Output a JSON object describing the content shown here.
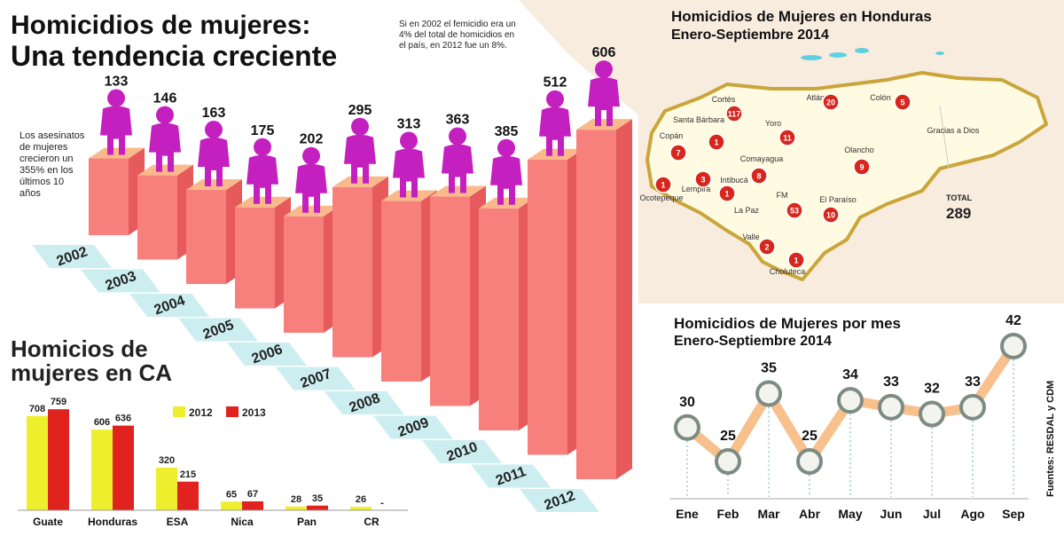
{
  "chart_data": [
    {
      "type": "bar",
      "title": "Homicidios de mujeres:",
      "subtitle": "Una tendencia creciente",
      "note": "Si en 2002 el femicidio era un 4% del total de homicidios en el país, en 2012 fue un 8%.",
      "annotation": "Los asesinatos de mujeres crecieron un 355% en los últimos 10 años",
      "categories": [
        "2002",
        "2003",
        "2004",
        "2005",
        "2006",
        "2007",
        "2008",
        "2009",
        "2010",
        "2011",
        "2012"
      ],
      "values": [
        133,
        146,
        163,
        175,
        202,
        295,
        313,
        363,
        385,
        512,
        606
      ],
      "color": "#f77f7c"
    },
    {
      "type": "bar",
      "title": "Homicios de mujeres en CA",
      "categories": [
        "Guate",
        "Honduras",
        "ESA",
        "Nica",
        "Pan",
        "CR"
      ],
      "series": [
        {
          "name": "2012",
          "color": "#eeee2c",
          "values": [
            708,
            606,
            320,
            65,
            28,
            26
          ]
        },
        {
          "name": "2013",
          "color": "#e0231f",
          "values": [
            759,
            636,
            215,
            67,
            35,
            null
          ],
          "value_labels": [
            "759",
            "636",
            "215",
            "67",
            "35",
            "-"
          ]
        }
      ]
    },
    {
      "type": "line",
      "title": "Homicidios de Mujeres por mes",
      "subtitle": "Enero-Septiembre 2014",
      "categories": [
        "Ene",
        "Feb",
        "Mar",
        "Abr",
        "May",
        "Jun",
        "Jul",
        "Ago",
        "Sep"
      ],
      "values": [
        30,
        25,
        35,
        25,
        34,
        33,
        32,
        33,
        42
      ],
      "color": "#f8c08c"
    }
  ],
  "map": {
    "title": "Homicidios de Mujeres en Honduras",
    "subtitle": "Enero-Septiembre 2014",
    "departments": [
      {
        "name": "Cortés",
        "value": 117
      },
      {
        "name": "Atlántida",
        "value": 20
      },
      {
        "name": "Colón",
        "value": 5
      },
      {
        "name": "Copán",
        "value": 7
      },
      {
        "name": "Santa Bárbara",
        "value": 1
      },
      {
        "name": "Yoro",
        "value": 11
      },
      {
        "name": "Ocotepeque",
        "value": 1
      },
      {
        "name": "Lempira",
        "value": 3
      },
      {
        "name": "Intibucá",
        "value": 1
      },
      {
        "name": "Comayagua",
        "value": 8
      },
      {
        "name": "Olancho",
        "value": 9
      },
      {
        "name": "FM",
        "value": 53
      },
      {
        "name": "El Paraíso",
        "value": 10
      },
      {
        "name": "Valle",
        "value": 2
      },
      {
        "name": "Choluteca",
        "value": 1
      }
    ],
    "labels": [
      "La Paz",
      "Gracias a Dios"
    ],
    "total_label": "TOTAL",
    "total": 289
  },
  "source": "Fuentes: RESDAL y CDM"
}
